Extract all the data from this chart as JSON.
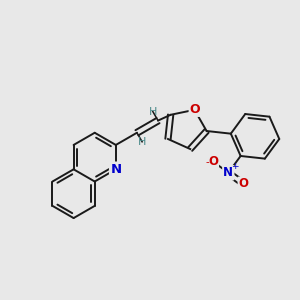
{
  "bg_color": "#e8e8e8",
  "bond_color": "#1a1a1a",
  "N_color": "#0000cc",
  "O_color": "#cc0000",
  "H_color": "#4a8a8a",
  "label_N": "N",
  "label_O_furan": "O",
  "label_O1": "O",
  "label_O2": "O",
  "label_N_nitro": "N",
  "label_plus": "+",
  "label_minus": "-",
  "label_H1": "H",
  "label_H2": "H",
  "figsize": [
    3.0,
    3.0
  ],
  "dpi": 100
}
